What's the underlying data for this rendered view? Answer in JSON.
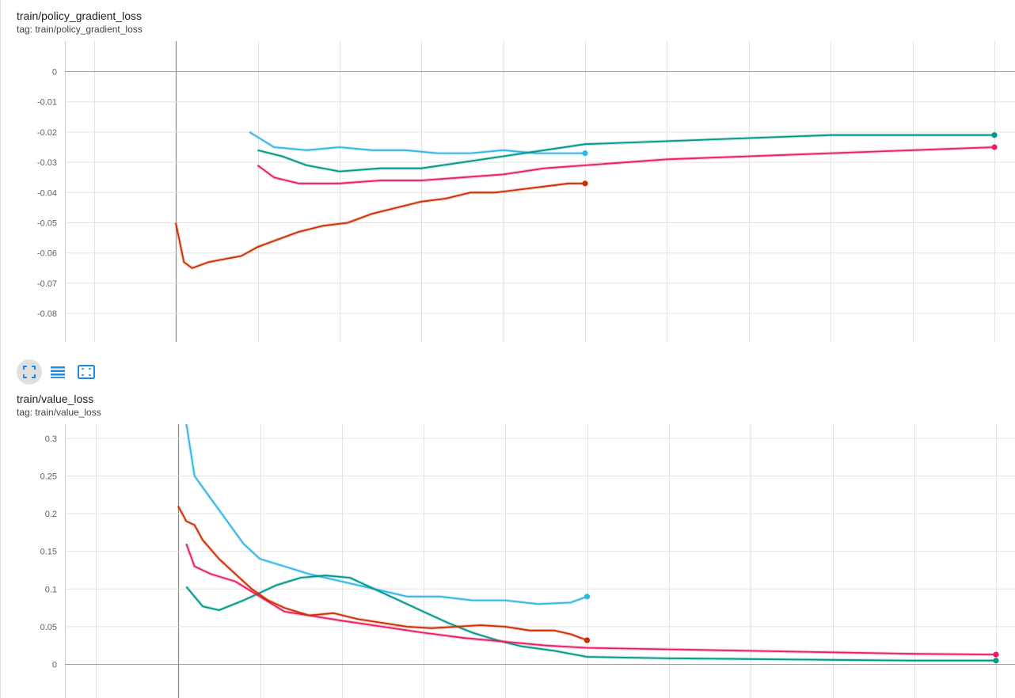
{
  "charts": [
    {
      "title": "train/policy_gradient_loss",
      "tag": "tag: train/policy_gradient_loss"
    },
    {
      "title": "train/value_loss",
      "tag": "tag: train/value_loss"
    }
  ],
  "toolbar": {
    "icons": [
      "fullscreen-icon",
      "toggle-log-scale-icon",
      "fit-domain-icon"
    ],
    "accent": "#1e88e5"
  },
  "chart_data": [
    {
      "type": "line",
      "title": "train/policy_gradient_loss",
      "xlim": [
        0,
        1
      ],
      "ylim": [
        -0.09,
        0.004
      ],
      "y_ticks": [
        0,
        -0.01,
        -0.02,
        -0.03,
        -0.04,
        -0.05,
        -0.06,
        -0.07,
        -0.08
      ],
      "y_tick_labels": [
        "0",
        "-0.01",
        "-0.02",
        "-0.03",
        "-0.04",
        "-0.05",
        "-0.06",
        "-0.07",
        "-0.08"
      ],
      "grid": true,
      "series": [
        {
          "color": "#33b5e5",
          "x": [
            0.09,
            0.12,
            0.16,
            0.2,
            0.24,
            0.28,
            0.32,
            0.36,
            0.4,
            0.44,
            0.48,
            0.5
          ],
          "y": [
            -0.02,
            -0.025,
            -0.026,
            -0.025,
            -0.026,
            -0.026,
            -0.027,
            -0.027,
            -0.026,
            -0.027,
            -0.027,
            -0.027
          ]
        },
        {
          "color": "#009688",
          "x": [
            0.1,
            0.13,
            0.16,
            0.2,
            0.25,
            0.3,
            0.35,
            0.4,
            0.45,
            0.5,
            0.6,
            0.7,
            0.8,
            0.9,
            1.0
          ],
          "y": [
            -0.026,
            -0.028,
            -0.031,
            -0.033,
            -0.032,
            -0.032,
            -0.03,
            -0.028,
            -0.026,
            -0.024,
            -0.023,
            -0.022,
            -0.021,
            -0.021,
            -0.021
          ]
        },
        {
          "color": "#e91e63",
          "x": [
            0.1,
            0.12,
            0.15,
            0.2,
            0.25,
            0.3,
            0.35,
            0.4,
            0.45,
            0.5,
            0.6,
            0.7,
            0.8,
            0.9,
            1.0
          ],
          "y": [
            -0.031,
            -0.035,
            -0.037,
            -0.037,
            -0.036,
            -0.036,
            -0.035,
            -0.034,
            -0.032,
            -0.031,
            -0.029,
            -0.028,
            -0.027,
            -0.026,
            -0.025
          ]
        },
        {
          "color": "#cc2e00",
          "x": [
            0.0,
            0.01,
            0.02,
            0.04,
            0.06,
            0.08,
            0.1,
            0.12,
            0.15,
            0.18,
            0.21,
            0.24,
            0.27,
            0.3,
            0.33,
            0.36,
            0.39,
            0.42,
            0.45,
            0.48,
            0.5
          ],
          "y": [
            -0.05,
            -0.063,
            -0.065,
            -0.063,
            -0.062,
            -0.061,
            -0.058,
            -0.056,
            -0.053,
            -0.051,
            -0.05,
            -0.047,
            -0.045,
            -0.043,
            -0.042,
            -0.04,
            -0.04,
            -0.039,
            -0.038,
            -0.037,
            -0.037
          ]
        }
      ]
    },
    {
      "type": "line",
      "title": "train/value_loss",
      "xlim": [
        0,
        1
      ],
      "ylim": [
        -0.02,
        0.32
      ],
      "y_ticks": [
        0.3,
        0.25,
        0.2,
        0.15,
        0.1,
        0.05,
        0
      ],
      "y_tick_labels": [
        "0.3",
        "0.25",
        "0.2",
        "0.15",
        "0.1",
        "0.05",
        "0"
      ],
      "grid": true,
      "series": [
        {
          "color": "#33b5e5",
          "x": [
            0.01,
            0.02,
            0.04,
            0.06,
            0.08,
            0.1,
            0.13,
            0.16,
            0.2,
            0.24,
            0.28,
            0.32,
            0.36,
            0.4,
            0.44,
            0.48,
            0.5
          ],
          "y": [
            0.32,
            0.25,
            0.22,
            0.19,
            0.16,
            0.14,
            0.13,
            0.12,
            0.11,
            0.1,
            0.09,
            0.09,
            0.085,
            0.085,
            0.08,
            0.082,
            0.09
          ]
        },
        {
          "color": "#009688",
          "x": [
            0.01,
            0.03,
            0.05,
            0.08,
            0.1,
            0.12,
            0.15,
            0.18,
            0.21,
            0.24,
            0.27,
            0.3,
            0.33,
            0.36,
            0.39,
            0.42,
            0.46,
            0.5,
            0.6,
            0.7,
            0.8,
            0.9,
            1.0
          ],
          "y": [
            0.103,
            0.077,
            0.072,
            0.085,
            0.095,
            0.105,
            0.115,
            0.118,
            0.115,
            0.1,
            0.085,
            0.07,
            0.055,
            0.042,
            0.032,
            0.024,
            0.018,
            0.01,
            0.008,
            0.007,
            0.006,
            0.005,
            0.005
          ]
        },
        {
          "color": "#e91e63",
          "x": [
            0.01,
            0.02,
            0.04,
            0.07,
            0.1,
            0.13,
            0.16,
            0.2,
            0.25,
            0.3,
            0.35,
            0.4,
            0.45,
            0.5,
            0.6,
            0.7,
            0.8,
            0.9,
            1.0
          ],
          "y": [
            0.16,
            0.13,
            0.12,
            0.11,
            0.09,
            0.07,
            0.065,
            0.058,
            0.05,
            0.042,
            0.035,
            0.03,
            0.025,
            0.022,
            0.02,
            0.018,
            0.016,
            0.014,
            0.013
          ]
        },
        {
          "color": "#cc2e00",
          "x": [
            0.0,
            0.01,
            0.02,
            0.03,
            0.05,
            0.07,
            0.09,
            0.11,
            0.13,
            0.16,
            0.19,
            0.22,
            0.25,
            0.28,
            0.31,
            0.34,
            0.37,
            0.4,
            0.43,
            0.46,
            0.48,
            0.5
          ],
          "y": [
            0.21,
            0.19,
            0.185,
            0.165,
            0.14,
            0.12,
            0.1,
            0.085,
            0.075,
            0.065,
            0.068,
            0.06,
            0.055,
            0.05,
            0.048,
            0.05,
            0.052,
            0.05,
            0.045,
            0.045,
            0.04,
            0.032
          ]
        }
      ]
    }
  ]
}
